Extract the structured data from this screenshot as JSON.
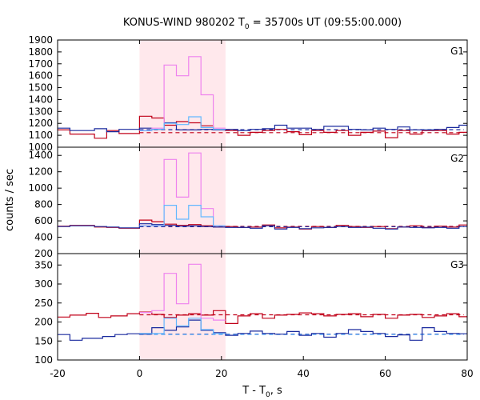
{
  "chart_data": {
    "type": "line",
    "title_prefix": "KONUS-WIND 980202 T",
    "title_sub": "0",
    "title_suffix": " = 35700s UT (09:55:00.000)",
    "xlabel_prefix": "T - T",
    "xlabel_sub": "0",
    "xlabel_suffix": ", s",
    "ylabel": "counts / sec",
    "xlim": [
      -20,
      80
    ],
    "xticks": [
      "-20",
      "0",
      "20",
      "40",
      "60",
      "80"
    ],
    "shaded_interval": [
      0,
      21
    ],
    "colors": {
      "red": "#c00018",
      "blue": "#1a2a9e",
      "pink": "#ee82ee",
      "cyan": "#63b8ff",
      "shade": "#ffe8ec"
    },
    "panels": [
      {
        "label": "G1",
        "ylim": [
          1000,
          1900
        ],
        "yticks": [
          "1000",
          "1100",
          "1200",
          "1300",
          "1400",
          "1500",
          "1600",
          "1700",
          "1800",
          "1900"
        ],
        "series": [
          {
            "color": "red",
            "edges": [
              -20,
              -17,
              -11,
              -8,
              -5,
              0,
              3,
              6,
              9,
              12,
              15,
              18,
              21,
              24,
              27,
              30,
              33,
              36,
              39,
              42,
              45,
              48,
              51,
              54,
              57,
              60,
              63,
              66,
              69,
              72,
              75,
              78,
              80
            ],
            "values": [
              1145,
              1110,
              1075,
              1140,
              1115,
              1260,
              1245,
              1185,
              1215,
              1205,
              1180,
              1145,
              1140,
              1100,
              1125,
              1140,
              1150,
              1130,
              1105,
              1140,
              1125,
              1140,
              1100,
              1125,
              1135,
              1080,
              1140,
              1110,
              1140,
              1140,
              1110,
              1125
            ]
          },
          {
            "color": "blue",
            "edges": [
              -20,
              -17,
              -11,
              -8,
              -5,
              0,
              3,
              6,
              9,
              12,
              15,
              18,
              21,
              24,
              27,
              30,
              33,
              36,
              39,
              42,
              45,
              48,
              51,
              54,
              57,
              60,
              63,
              66,
              69,
              72,
              75,
              78,
              80
            ],
            "values": [
              1160,
              1140,
              1155,
              1130,
              1150,
              1160,
              1150,
              1205,
              1145,
              1145,
              1150,
              1145,
              1150,
              1140,
              1150,
              1155,
              1185,
              1160,
              1160,
              1150,
              1175,
              1175,
              1150,
              1145,
              1160,
              1150,
              1170,
              1145,
              1145,
              1150,
              1165,
              1185
            ]
          },
          {
            "color": "pink",
            "edges": [
              0,
              3,
              6,
              9,
              12,
              15,
              18,
              21
            ],
            "values": [
              1140,
              1160,
              1690,
              1600,
              1760,
              1440,
              1160
            ]
          },
          {
            "color": "cyan",
            "edges": [
              0,
              3,
              6,
              9,
              12,
              15,
              18,
              21
            ],
            "values": [
              1140,
              1150,
              1200,
              1190,
              1255,
              1165,
              1150
            ]
          }
        ],
        "backgrounds": [
          {
            "color": "red",
            "value": 1122
          },
          {
            "color": "blue",
            "value": 1147
          }
        ]
      },
      {
        "label": "G2",
        "ylim": [
          200,
          1500
        ],
        "yticks": [
          "200",
          "400",
          "600",
          "800",
          "1000",
          "1200",
          "1400"
        ],
        "series": [
          {
            "color": "red",
            "edges": [
              -20,
              -17,
              -11,
              -8,
              -5,
              0,
              3,
              6,
              9,
              12,
              15,
              18,
              21,
              24,
              27,
              30,
              33,
              36,
              39,
              42,
              45,
              48,
              51,
              54,
              57,
              60,
              63,
              66,
              69,
              72,
              75,
              78,
              80
            ],
            "values": [
              535,
              545,
              525,
              520,
              510,
              610,
              590,
              560,
              545,
              555,
              540,
              525,
              530,
              520,
              525,
              550,
              515,
              525,
              500,
              530,
              520,
              545,
              530,
              520,
              530,
              505,
              525,
              540,
              520,
              535,
              525,
              550
            ]
          },
          {
            "color": "blue",
            "edges": [
              -20,
              -17,
              -11,
              -8,
              -5,
              0,
              3,
              6,
              9,
              12,
              15,
              18,
              21,
              24,
              27,
              30,
              33,
              36,
              39,
              42,
              45,
              48,
              51,
              54,
              57,
              60,
              63,
              66,
              69,
              72,
              75,
              78,
              80
            ],
            "values": [
              530,
              540,
              530,
              525,
              515,
              565,
              555,
              545,
              535,
              540,
              530,
              525,
              520,
              520,
              510,
              540,
              500,
              520,
              505,
              515,
              520,
              530,
              520,
              525,
              510,
              500,
              525,
              520,
              515,
              520,
              510,
              530
            ]
          },
          {
            "color": "pink",
            "edges": [
              0,
              3,
              6,
              9,
              12,
              15,
              18,
              21
            ],
            "values": [
              540,
              540,
              1350,
              890,
              1430,
              750,
              540
            ]
          },
          {
            "color": "cyan",
            "edges": [
              0,
              3,
              6,
              9,
              12,
              15,
              18,
              21
            ],
            "values": [
              540,
              540,
              790,
              620,
              790,
              650,
              540
            ]
          }
        ],
        "backgrounds": [
          {
            "color": "red",
            "value": 532
          },
          {
            "color": "blue",
            "value": 528
          }
        ]
      },
      {
        "label": "G3",
        "ylim": [
          100,
          380
        ],
        "yticks": [
          "100",
          "150",
          "200",
          "250",
          "300",
          "350"
        ],
        "series": [
          {
            "color": "red",
            "edges": [
              -20,
              -17,
              -13,
              -10,
              -7,
              -3,
              0,
              3,
              6,
              9,
              12,
              15,
              18,
              21,
              24,
              27,
              30,
              33,
              36,
              39,
              42,
              45,
              48,
              51,
              54,
              57,
              60,
              63,
              66,
              69,
              72,
              75,
              78,
              80
            ],
            "values": [
              213,
              218,
              223,
              212,
              216,
              222,
              226,
              220,
              212,
              218,
              222,
              218,
              230,
              196,
              216,
              222,
              210,
              218,
              220,
              224,
              222,
              216,
              220,
              222,
              214,
              220,
              210,
              218,
              220,
              212,
              216,
              222,
              214
            ]
          },
          {
            "color": "blue",
            "edges": [
              -20,
              -17,
              -14,
              -9,
              -6,
              -3,
              0,
              3,
              6,
              9,
              12,
              15,
              18,
              21,
              24,
              27,
              30,
              33,
              36,
              39,
              42,
              45,
              48,
              51,
              54,
              57,
              60,
              63,
              66,
              69,
              72,
              75,
              78,
              80
            ],
            "values": [
              167,
              152,
              157,
              162,
              167,
              169,
              168,
              185,
              178,
              187,
              205,
              178,
              172,
              165,
              170,
              176,
              170,
              168,
              175,
              165,
              170,
              160,
              170,
              180,
              175,
              170,
              162,
              166,
              152,
              185,
              175,
              170,
              169
            ]
          },
          {
            "color": "pink",
            "edges": [
              0,
              3,
              6,
              9,
              12,
              15,
              18,
              21
            ],
            "values": [
              225,
              230,
              328,
              248,
              352,
              210,
              205
            ]
          },
          {
            "color": "cyan",
            "edges": [
              0,
              3,
              6,
              9,
              12,
              15,
              18,
              21
            ],
            "values": [
              170,
              170,
              210,
              190,
              210,
              180,
              170
            ]
          }
        ],
        "backgrounds": [
          {
            "color": "red",
            "value": 219
          },
          {
            "color": "blue",
            "value": 168
          },
          {
            "color": "cyan",
            "value": 167
          }
        ]
      }
    ]
  }
}
